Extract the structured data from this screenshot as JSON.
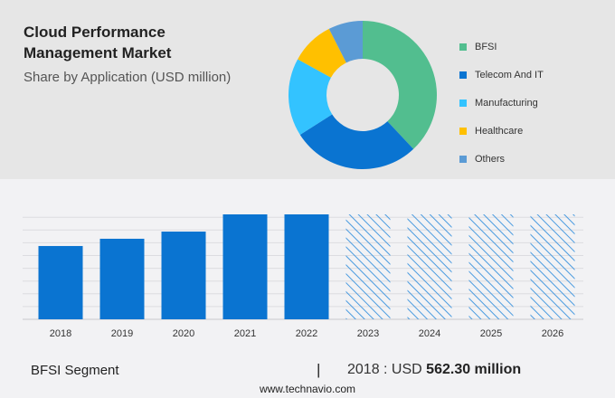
{
  "header": {
    "title": "Cloud Performance Management Market",
    "subtitle": "Share by Application (USD million)"
  },
  "chart_data": [
    {
      "type": "pie",
      "variant": "donut",
      "categories": [
        "BFSI",
        "Telecom And IT",
        "Manufacturing",
        "Healthcare",
        "Others"
      ],
      "values": [
        38,
        28,
        17,
        9.5,
        7.5
      ],
      "unit": "percent (estimated)",
      "colors": [
        "#52be8f",
        "#0a74d1",
        "#33c3ff",
        "#ffc000",
        "#5b9bd5"
      ],
      "legend_position": "right"
    },
    {
      "type": "bar",
      "categories": [
        "2018",
        "2019",
        "2020",
        "2021",
        "2022",
        "2023",
        "2024",
        "2025",
        "2026"
      ],
      "values": [
        562.3,
        618,
        673,
        805,
        805,
        null,
        null,
        null,
        null
      ],
      "forecast": [
        false,
        false,
        false,
        false,
        false,
        true,
        true,
        true,
        true
      ],
      "color": "#0a74d1",
      "grid": true,
      "ylabel": "",
      "xlabel": ""
    }
  ],
  "footer": {
    "segment": "BFSI Segment",
    "separator": "|",
    "year_label": "2018 : USD",
    "value": "562.30 million",
    "website": "www.technavio.com"
  }
}
